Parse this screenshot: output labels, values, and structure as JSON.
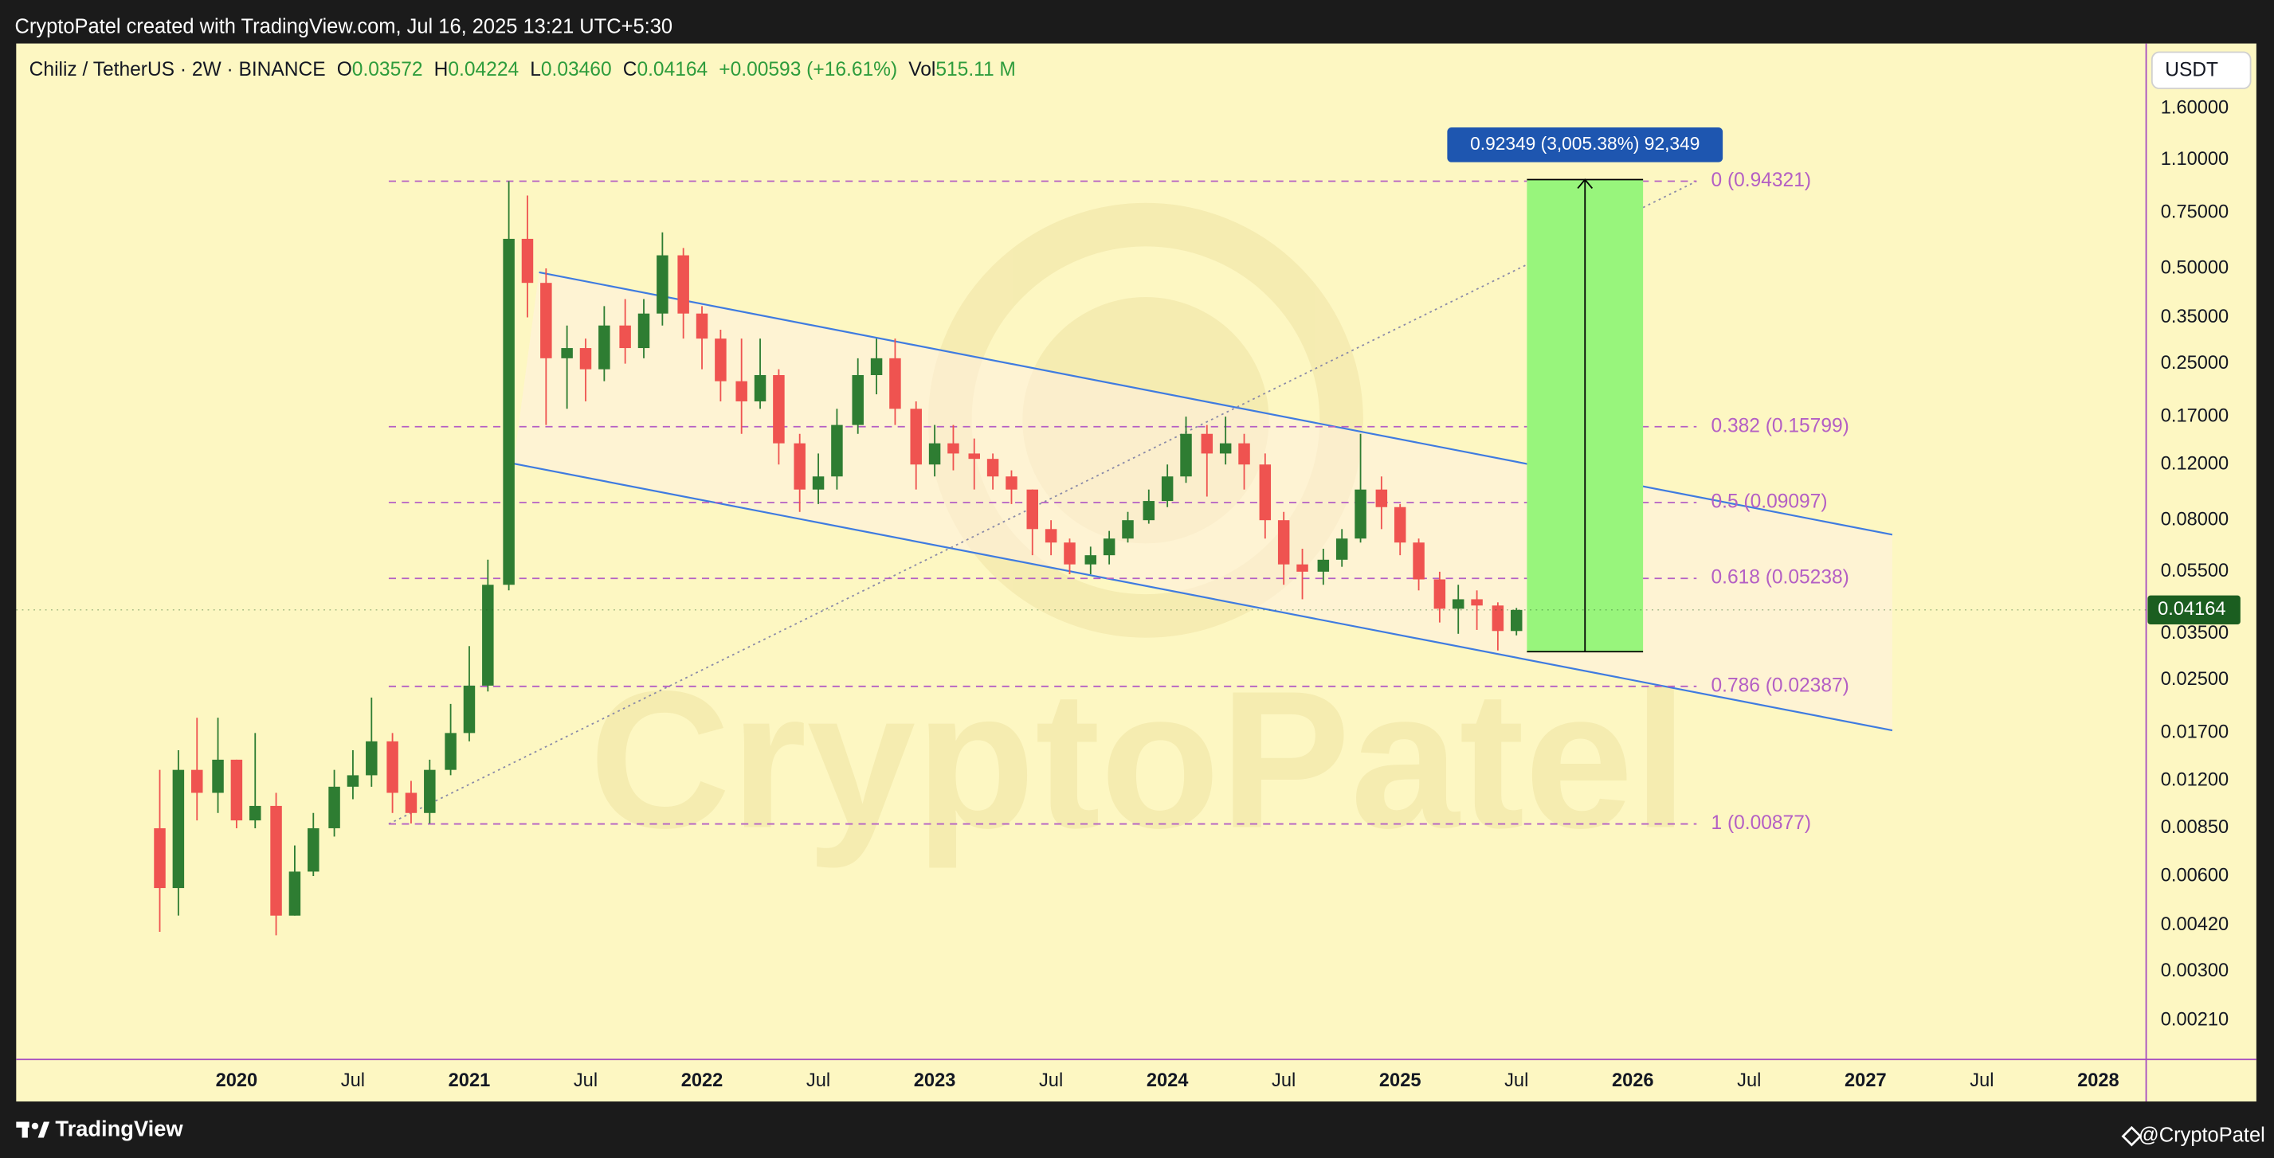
{
  "header": {
    "text": "CryptoPatel created with TradingView.com, Jul 16, 2025 13:21 UTC+5:30"
  },
  "footer": {
    "brand": "TradingView",
    "author": "@CryptoPatel"
  },
  "chart_data": {
    "type": "candlestick",
    "currency": "USDT",
    "legend": {
      "symbol": "Chiliz / TetherUS · 2W · BINANCE",
      "o_label": "O",
      "o": "0.03572",
      "h_label": "H",
      "h": "0.04224",
      "l_label": "L",
      "l": "0.03460",
      "c_label": "C",
      "c": "0.04164",
      "change": "+0.00593 (+16.61%)",
      "vol_label": "Vol",
      "vol": "515.11 M"
    },
    "watermark": "CryptoPatel",
    "log_scale": true,
    "grid": false,
    "up_color": "#2e7d32",
    "down_color": "#ef5350",
    "xlim": [
      2019.053,
      2028.206
    ],
    "ylim": [
      0.00158,
      2.57
    ],
    "xticks": [
      {
        "value": 2020,
        "label": "2020"
      },
      {
        "value": 2020.5,
        "label": "Jul"
      },
      {
        "value": 2021,
        "label": "2021"
      },
      {
        "value": 2021.5,
        "label": "Jul"
      },
      {
        "value": 2022,
        "label": "2022"
      },
      {
        "value": 2022.5,
        "label": "Jul"
      },
      {
        "value": 2023,
        "label": "2023"
      },
      {
        "value": 2023.5,
        "label": "Jul"
      },
      {
        "value": 2024,
        "label": "2024"
      },
      {
        "value": 2024.5,
        "label": "Jul"
      },
      {
        "value": 2025,
        "label": "2025"
      },
      {
        "value": 2025.5,
        "label": "Jul"
      },
      {
        "value": 2026,
        "label": "2026"
      },
      {
        "value": 2026.5,
        "label": "Jul"
      },
      {
        "value": 2027,
        "label": "2027"
      },
      {
        "value": 2027.5,
        "label": "Jul"
      },
      {
        "value": 2028,
        "label": "2028"
      }
    ],
    "yticks": [
      {
        "value": 1.6,
        "label": "1.60000"
      },
      {
        "value": 1.1,
        "label": "1.10000"
      },
      {
        "value": 0.75,
        "label": "0.75000"
      },
      {
        "value": 0.5,
        "label": "0.50000"
      },
      {
        "value": 0.35,
        "label": "0.35000"
      },
      {
        "value": 0.25,
        "label": "0.25000"
      },
      {
        "value": 0.17,
        "label": "0.17000"
      },
      {
        "value": 0.12,
        "label": "0.12000"
      },
      {
        "value": 0.08,
        "label": "0.08000"
      },
      {
        "value": 0.055,
        "label": "0.05500"
      },
      {
        "value": 0.035,
        "label": "0.03500"
      },
      {
        "value": 0.025,
        "label": "0.02500"
      },
      {
        "value": 0.017,
        "label": "0.01700"
      },
      {
        "value": 0.012,
        "label": "0.01200"
      },
      {
        "value": 0.0085,
        "label": "0.00850"
      },
      {
        "value": 0.006,
        "label": "0.00600"
      },
      {
        "value": 0.0042,
        "label": "0.00420"
      },
      {
        "value": 0.003,
        "label": "0.00300"
      },
      {
        "value": 0.0021,
        "label": "0.00210"
      }
    ],
    "x": [
      2019.67,
      2019.75,
      2019.83,
      2019.92,
      2020.0,
      2020.08,
      2020.17,
      2020.25,
      2020.33,
      2020.42,
      2020.5,
      2020.58,
      2020.67,
      2020.75,
      2020.83,
      2020.92,
      2021.0,
      2021.08,
      2021.17,
      2021.25,
      2021.33,
      2021.42,
      2021.5,
      2021.58,
      2021.67,
      2021.75,
      2021.83,
      2021.92,
      2022.0,
      2022.08,
      2022.17,
      2022.25,
      2022.33,
      2022.42,
      2022.5,
      2022.58,
      2022.67,
      2022.75,
      2022.83,
      2022.92,
      2023.0,
      2023.08,
      2023.17,
      2023.25,
      2023.33,
      2023.42,
      2023.5,
      2023.58,
      2023.67,
      2023.75,
      2023.83,
      2023.92,
      2024.0,
      2024.08,
      2024.17,
      2024.25,
      2024.33,
      2024.42,
      2024.5,
      2024.58,
      2024.67,
      2024.75,
      2024.83,
      2024.92,
      2025.0,
      2025.08,
      2025.17,
      2025.25,
      2025.33,
      2025.42,
      2025.5
    ],
    "open": [
      0.0085,
      0.0055,
      0.013,
      0.011,
      0.014,
      0.009,
      0.01,
      0.0045,
      0.0062,
      0.0085,
      0.0115,
      0.0125,
      0.016,
      0.011,
      0.0095,
      0.013,
      0.017,
      0.024,
      0.05,
      0.62,
      0.45,
      0.26,
      0.28,
      0.24,
      0.33,
      0.28,
      0.36,
      0.55,
      0.36,
      0.3,
      0.22,
      0.19,
      0.23,
      0.14,
      0.1,
      0.11,
      0.16,
      0.23,
      0.26,
      0.18,
      0.12,
      0.14,
      0.13,
      0.125,
      0.11,
      0.1,
      0.075,
      0.068,
      0.058,
      0.062,
      0.07,
      0.08,
      0.092,
      0.11,
      0.15,
      0.13,
      0.14,
      0.12,
      0.08,
      0.058,
      0.055,
      0.06,
      0.07,
      0.1,
      0.088,
      0.068,
      0.052,
      0.042,
      0.045,
      0.043,
      0.03572
    ],
    "high": [
      0.013,
      0.015,
      0.019,
      0.019,
      0.014,
      0.017,
      0.011,
      0.0075,
      0.0095,
      0.013,
      0.015,
      0.022,
      0.017,
      0.012,
      0.014,
      0.021,
      0.032,
      0.06,
      0.94321,
      0.85,
      0.5,
      0.33,
      0.3,
      0.38,
      0.4,
      0.4,
      0.65,
      0.58,
      0.38,
      0.32,
      0.3,
      0.3,
      0.24,
      0.15,
      0.13,
      0.18,
      0.26,
      0.3,
      0.3,
      0.19,
      0.16,
      0.16,
      0.145,
      0.13,
      0.115,
      0.1,
      0.08,
      0.07,
      0.066,
      0.074,
      0.085,
      0.1,
      0.12,
      0.17,
      0.16,
      0.17,
      0.15,
      0.13,
      0.085,
      0.065,
      0.065,
      0.075,
      0.15,
      0.11,
      0.09,
      0.07,
      0.055,
      0.05,
      0.048,
      0.044,
      0.04224
    ],
    "low": [
      0.004,
      0.0045,
      0.009,
      0.0095,
      0.0085,
      0.0085,
      0.0039,
      0.0045,
      0.006,
      0.008,
      0.0105,
      0.0115,
      0.0095,
      0.0088,
      0.0088,
      0.0125,
      0.016,
      0.023,
      0.048,
      0.35,
      0.16,
      0.18,
      0.19,
      0.22,
      0.25,
      0.26,
      0.33,
      0.3,
      0.24,
      0.19,
      0.15,
      0.18,
      0.12,
      0.085,
      0.09,
      0.1,
      0.15,
      0.2,
      0.16,
      0.1,
      0.11,
      0.115,
      0.1,
      0.1,
      0.09,
      0.062,
      0.062,
      0.054,
      0.054,
      0.058,
      0.068,
      0.078,
      0.088,
      0.105,
      0.095,
      0.12,
      0.1,
      0.07,
      0.05,
      0.045,
      0.05,
      0.057,
      0.068,
      0.075,
      0.062,
      0.048,
      0.038,
      0.035,
      0.036,
      0.031,
      0.0346
    ],
    "close": [
      0.0055,
      0.013,
      0.011,
      0.014,
      0.009,
      0.01,
      0.0045,
      0.0062,
      0.0085,
      0.0115,
      0.0125,
      0.016,
      0.011,
      0.0095,
      0.013,
      0.017,
      0.024,
      0.05,
      0.62,
      0.45,
      0.26,
      0.28,
      0.24,
      0.33,
      0.28,
      0.36,
      0.55,
      0.36,
      0.3,
      0.22,
      0.19,
      0.23,
      0.14,
      0.1,
      0.11,
      0.16,
      0.23,
      0.26,
      0.18,
      0.12,
      0.14,
      0.13,
      0.125,
      0.11,
      0.1,
      0.075,
      0.068,
      0.058,
      0.062,
      0.07,
      0.08,
      0.092,
      0.11,
      0.15,
      0.13,
      0.14,
      0.12,
      0.08,
      0.058,
      0.055,
      0.06,
      0.07,
      0.1,
      0.088,
      0.068,
      0.052,
      0.042,
      0.045,
      0.043,
      0.03572,
      0.04164
    ],
    "last_price": {
      "value": 0.04164,
      "label": "0.04164",
      "color": "#1b5e20"
    },
    "fib_color": "#b45fc4",
    "fib_x": [
      2020.654,
      2026.274
    ],
    "fib_levels": [
      {
        "value": 0.94321,
        "label": "0 (0.94321)"
      },
      {
        "value": 0.15799,
        "label": "0.382 (0.15799)"
      },
      {
        "value": 0.09097,
        "label": "0.5 (0.09097)"
      },
      {
        "value": 0.05238,
        "label": "0.618 (0.05238)"
      },
      {
        "value": 0.02387,
        "label": "0.786 (0.02387)"
      },
      {
        "value": 0.00877,
        "label": "1 (0.00877)"
      }
    ],
    "channel": {
      "color": "#3f7be0",
      "upper": {
        "x": [
          2021.3,
          2027.115
        ],
        "y": [
          0.486,
          0.072
        ]
      },
      "lower": {
        "x": [
          2021.19,
          2027.115
        ],
        "y": [
          0.1208,
          0.01733
        ]
      }
    },
    "trendline": {
      "color": "#8a8aa8",
      "x": [
        2020.654,
        2026.274
      ],
      "y": [
        0.00877,
        0.94321
      ]
    },
    "measure": {
      "label": "0.92349 (3,005.38%) 92,349",
      "color": "#98f57c",
      "label_color": "#1e56b0",
      "x": [
        2025.545,
        2026.044
      ],
      "y": [
        0.03073,
        0.95422
      ]
    }
  }
}
